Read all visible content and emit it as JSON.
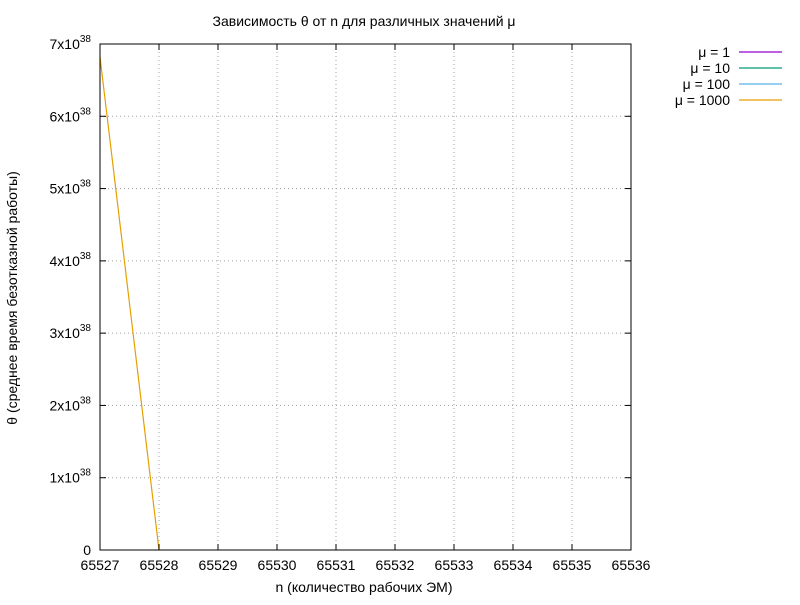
{
  "chart_data": {
    "type": "line",
    "title": "Зависимость θ от n для различных значений μ",
    "xlabel": "n (количество рабочих ЭМ)",
    "ylabel": "θ (среднее время безотказной работы)",
    "xlim": [
      65527,
      65536
    ],
    "ylim": [
      0,
      7e+38
    ],
    "x_ticks": [
      65527,
      65528,
      65529,
      65530,
      65531,
      65532,
      65533,
      65534,
      65535,
      65536
    ],
    "y_ticks": [
      {
        "value": 0,
        "mantissa": "0",
        "exponent": ""
      },
      {
        "value": 1e+38,
        "mantissa": "1x10",
        "exponent": "38"
      },
      {
        "value": 2e+38,
        "mantissa": "2x10",
        "exponent": "38"
      },
      {
        "value": 3e+38,
        "mantissa": "3x10",
        "exponent": "38"
      },
      {
        "value": 4e+38,
        "mantissa": "4x10",
        "exponent": "38"
      },
      {
        "value": 5e+38,
        "mantissa": "5x10",
        "exponent": "38"
      },
      {
        "value": 6e+38,
        "mantissa": "6x10",
        "exponent": "38"
      },
      {
        "value": 7e+38,
        "mantissa": "7x10",
        "exponent": "38"
      }
    ],
    "grid": true,
    "legend_position": "outside-top-right",
    "series": [
      {
        "name": "μ = 1",
        "color": "#9400d3",
        "x": [],
        "y": []
      },
      {
        "name": "μ = 10",
        "color": "#009e73",
        "x": [],
        "y": []
      },
      {
        "name": "μ = 100",
        "color": "#56b4e9",
        "x": [],
        "y": []
      },
      {
        "name": "μ = 1000",
        "color": "#e69f00",
        "x": [
          65527,
          65528
        ],
        "y": [
          6.82e+38,
          0
        ]
      }
    ]
  }
}
